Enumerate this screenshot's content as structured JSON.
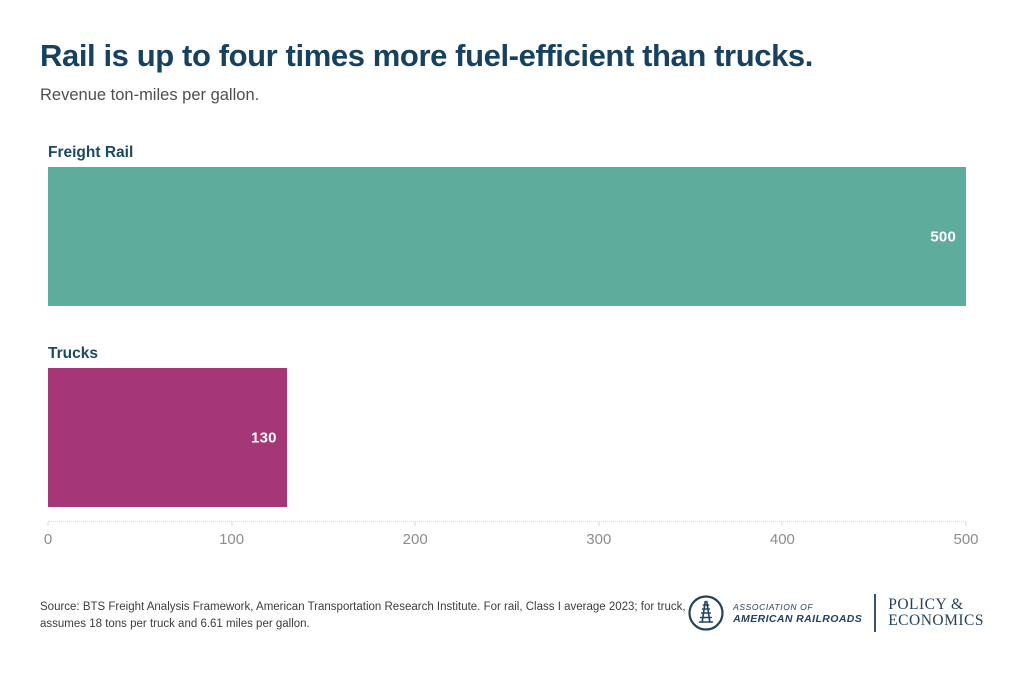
{
  "page": {
    "title": "Rail is up to four times more fuel-efficient than trucks.",
    "subtitle": "Revenue ton-miles per gallon."
  },
  "chart_data": {
    "type": "bar",
    "orientation": "horizontal",
    "title": "Rail is up to four times more fuel-efficient than trucks.",
    "subtitle": "Revenue ton-miles per gallon.",
    "categories": [
      "Freight Rail",
      "Trucks"
    ],
    "values": [
      500,
      130
    ],
    "value_labels": [
      "500",
      "130"
    ],
    "bar_colors": [
      "#5ead9c",
      "#a43876"
    ],
    "xlim": [
      0,
      500
    ],
    "x_ticks": [
      0,
      100,
      200,
      300,
      400,
      500
    ],
    "grid": false,
    "legend": "none"
  },
  "footer": {
    "source_lines": [
      "Source: BTS Freight Analysis Framework, American Transportation Research Institute. For rail, Class I average 2023; for truck,",
      "assumes 18 tons per truck and 6.61 miles per gallon."
    ]
  },
  "branding": {
    "aar_name_line1": "ASSOCIATION OF",
    "aar_name_line2": "AMERICAN RAILROADS",
    "policy_line1": "POLICY &",
    "policy_line2": "ECONOMICS"
  },
  "colors": {
    "title_navy": "#16415f",
    "category_navy": "#1c4962",
    "rail_teal": "#5ead9c",
    "trucks_magenta": "#a43876",
    "axis_gray": "#8d8d8d",
    "source_gray": "#3d3d3d",
    "logo_navy": "#24415e"
  }
}
